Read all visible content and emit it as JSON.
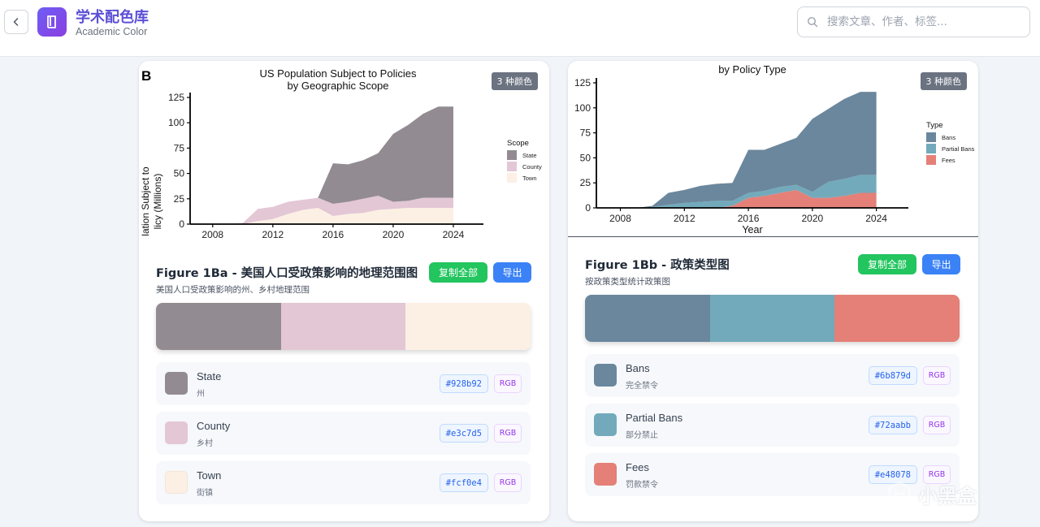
{
  "header": {
    "title": "学术配色库",
    "subtitle": "Academic Color",
    "search_placeholder": "搜索文章、作者、标签..."
  },
  "cards": [
    {
      "badge": "3 种颜色",
      "figure_title": "Figure 1Ba - 美国人口受政策影响的地理范围图",
      "figure_subtitle": "美国人口受政策影响的州、乡村地理范围",
      "copy_label": "复制全部",
      "export_label": "导出",
      "colors": [
        {
          "name": "State",
          "cn": "州",
          "hex": "#928b92",
          "rgb": "RGB"
        },
        {
          "name": "County",
          "cn": "乡村",
          "hex": "#e3c7d5",
          "rgb": "RGB"
        },
        {
          "name": "Town",
          "cn": "街镇",
          "hex": "#fcf0e4",
          "rgb": "RGB"
        }
      ]
    },
    {
      "badge": "3 种颜色",
      "figure_title": "Figure 1Bb - 政策类型图",
      "figure_subtitle": "按政策类型统计政策图",
      "copy_label": "复制全部",
      "export_label": "导出",
      "colors": [
        {
          "name": "Bans",
          "cn": "完全禁令",
          "hex": "#6b879d",
          "rgb": "RGB"
        },
        {
          "name": "Partial Bans",
          "cn": "部分禁止",
          "hex": "#72aabb",
          "rgb": "RGB"
        },
        {
          "name": "Fees",
          "cn": "罚款禁令",
          "hex": "#e48078",
          "rgb": "RGB"
        }
      ]
    }
  ],
  "chart_data": [
    {
      "type": "area",
      "panel_label": "B",
      "title": "US Population Subject to Policies",
      "subtitle": "by Geographic Scope",
      "xlabel": "",
      "ylabel": "lation Subject to\nlicy (Millions)",
      "xlim": [
        2006.5,
        2026
      ],
      "ylim": [
        0,
        125
      ],
      "xticks": [
        2008,
        2012,
        2016,
        2020,
        2024
      ],
      "yticks": [
        0,
        25,
        50,
        75,
        100,
        125
      ],
      "legend_title": "Scope",
      "legend_position": "right",
      "x": [
        2008,
        2009,
        2010,
        2011,
        2012,
        2013,
        2014,
        2015,
        2016,
        2017,
        2018,
        2019,
        2020,
        2021,
        2022,
        2023,
        2024
      ],
      "series": [
        {
          "name": "Town",
          "color": "#fcf0e4",
          "values": [
            0,
            0,
            0,
            3,
            5,
            10,
            14,
            16,
            8,
            10,
            11,
            14,
            15,
            16,
            16,
            16,
            16
          ]
        },
        {
          "name": "County",
          "color": "#e3c7d5",
          "values": [
            0,
            0,
            1,
            12,
            12,
            12,
            10,
            10,
            12,
            12,
            14,
            14,
            7,
            7,
            10,
            10,
            10
          ]
        },
        {
          "name": "State",
          "color": "#928b92",
          "values": [
            0,
            0,
            0,
            0,
            0,
            0,
            0,
            0,
            40,
            37,
            38,
            42,
            67,
            75,
            83,
            90,
            90
          ]
        }
      ]
    },
    {
      "type": "area",
      "title": "by Policy Type",
      "xlabel": "Year",
      "ylabel": "",
      "xlim": [
        2006.5,
        2026
      ],
      "ylim": [
        0,
        125
      ],
      "xticks": [
        2008,
        2012,
        2016,
        2020,
        2024
      ],
      "yticks": [
        0,
        25,
        50,
        75,
        100,
        125
      ],
      "legend_title": "Type",
      "legend_position": "right",
      "x": [
        2008,
        2009,
        2010,
        2011,
        2012,
        2013,
        2014,
        2015,
        2016,
        2017,
        2018,
        2019,
        2020,
        2021,
        2022,
        2023,
        2024
      ],
      "series": [
        {
          "name": "Fees",
          "color": "#e48078",
          "values": [
            0,
            0,
            0,
            0,
            0,
            0,
            0,
            2,
            10,
            12,
            15,
            18,
            10,
            10,
            12,
            15,
            15
          ]
        },
        {
          "name": "Partial Bans",
          "color": "#72aabb",
          "values": [
            0,
            0,
            1,
            3,
            5,
            6,
            7,
            5,
            5,
            5,
            6,
            5,
            6,
            16,
            17,
            18,
            18
          ]
        },
        {
          "name": "Bans",
          "color": "#6b879d",
          "values": [
            0,
            0,
            1,
            12,
            13,
            16,
            17,
            18,
            43,
            41,
            43,
            47,
            73,
            73,
            80,
            83,
            83
          ]
        }
      ]
    }
  ]
}
